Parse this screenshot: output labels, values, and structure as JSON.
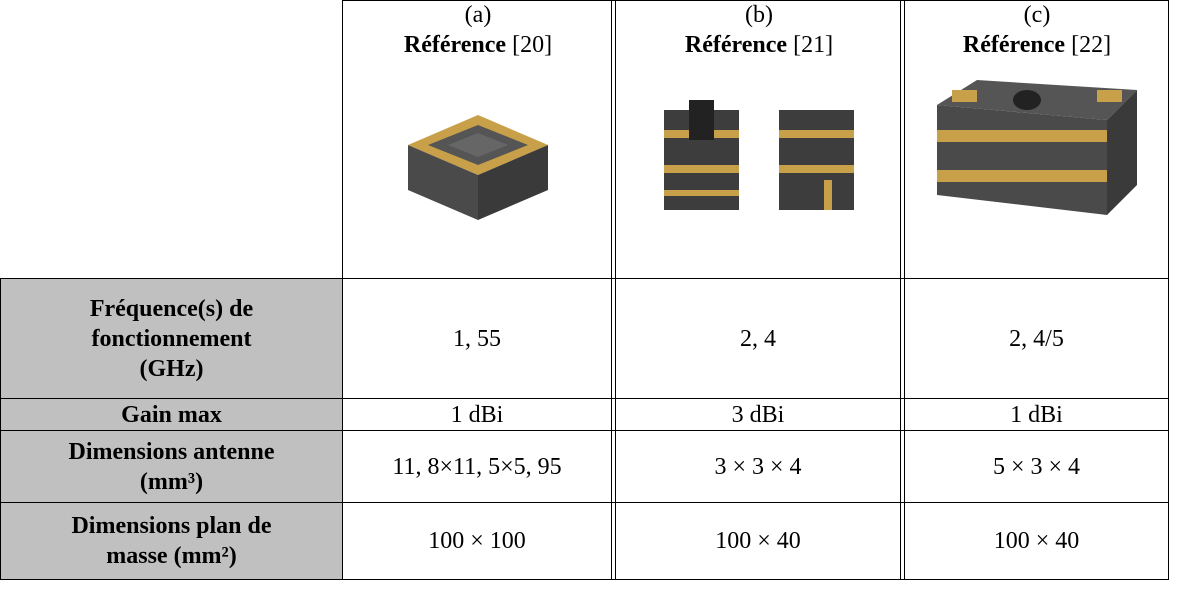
{
  "table": {
    "columns": [
      {
        "label": "(a)",
        "title": "Référence",
        "ref": "[20]"
      },
      {
        "label": "(b)",
        "title": "Référence",
        "ref": "[21]"
      },
      {
        "label": "(c)",
        "title": "Référence",
        "ref": "[22]"
      }
    ],
    "rows": [
      {
        "header": "Fréquence(s) de fonctionnement (GHz)",
        "cells": [
          "1, 55",
          "2, 4",
          "2, 4/5"
        ]
      },
      {
        "header": "Gain max",
        "cells": [
          "1 dBi",
          "3 dBi",
          "1 dBi"
        ]
      },
      {
        "header": "Dimensions antenne (mm³)",
        "cells": [
          "11, 8×11, 5×5, 95",
          "3 × 3 × 4",
          "5 × 3 × 4"
        ]
      },
      {
        "header": "Dimensions plan de masse (mm²)",
        "cells": [
          "100 × 100",
          "100 × 40",
          "100 × 40"
        ]
      }
    ]
  }
}
